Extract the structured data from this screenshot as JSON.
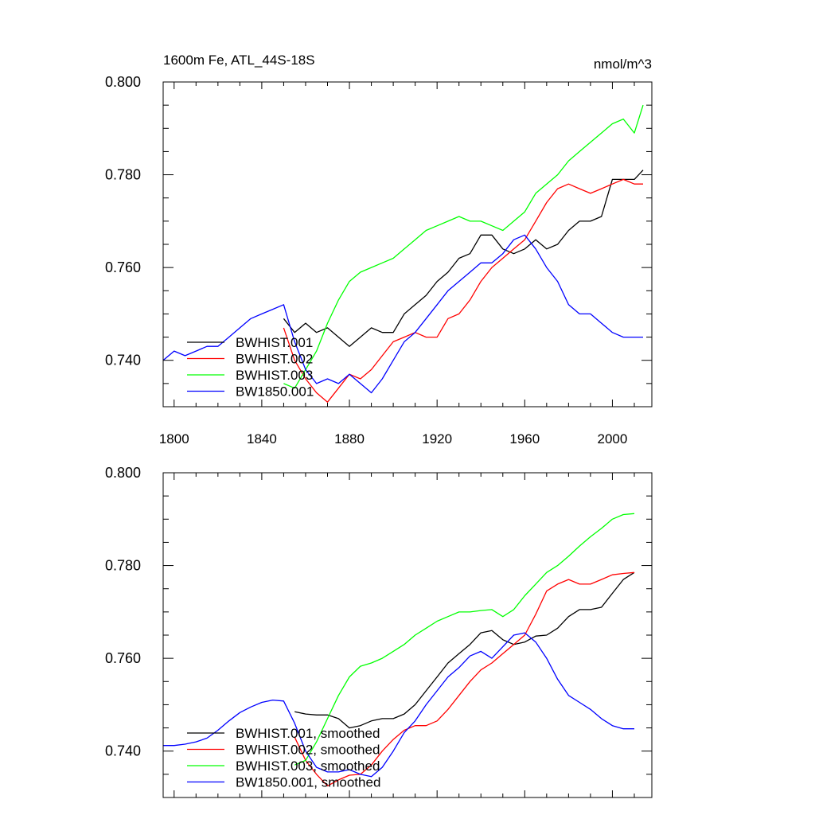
{
  "chart_data": [
    {
      "type": "line",
      "title": "1600m Fe, ATL_44S-18S",
      "units": "nmol/m^3",
      "xlim": [
        1795,
        2018
      ],
      "ylim": [
        0.73,
        0.8
      ],
      "x_ticks": [
        1800,
        1840,
        1880,
        1920,
        1960,
        2000
      ],
      "x_tick_labels": [
        "1800",
        "1840",
        "1880",
        "1920",
        "1960",
        "2000"
      ],
      "y_ticks": [
        0.74,
        0.76,
        0.78,
        0.8
      ],
      "y_tick_labels": [
        "0.740",
        "0.760",
        "0.780",
        "0.800"
      ],
      "legend_position": "bottom-left",
      "series": [
        {
          "name": "BWHIST.001",
          "color": "#000000",
          "x": [
            1850,
            1855,
            1860,
            1865,
            1870,
            1875,
            1880,
            1885,
            1890,
            1895,
            1900,
            1905,
            1910,
            1915,
            1920,
            1925,
            1930,
            1935,
            1940,
            1945,
            1950,
            1955,
            1960,
            1965,
            1970,
            1975,
            1980,
            1985,
            1990,
            1995,
            2000,
            2005,
            2010,
            2014
          ],
          "y": [
            0.749,
            0.746,
            0.748,
            0.746,
            0.747,
            0.745,
            0.743,
            0.745,
            0.747,
            0.746,
            0.746,
            0.75,
            0.752,
            0.754,
            0.757,
            0.759,
            0.762,
            0.763,
            0.767,
            0.767,
            0.764,
            0.763,
            0.764,
            0.766,
            0.764,
            0.765,
            0.768,
            0.77,
            0.77,
            0.771,
            0.779,
            0.779,
            0.779,
            0.781
          ]
        },
        {
          "name": "BWHIST.002",
          "color": "#ff0000",
          "x": [
            1850,
            1855,
            1860,
            1865,
            1870,
            1875,
            1880,
            1885,
            1890,
            1895,
            1900,
            1905,
            1910,
            1915,
            1920,
            1925,
            1930,
            1935,
            1940,
            1945,
            1950,
            1955,
            1960,
            1965,
            1970,
            1975,
            1980,
            1985,
            1990,
            1995,
            2000,
            2005,
            2010,
            2014
          ],
          "y": [
            0.747,
            0.74,
            0.736,
            0.733,
            0.731,
            0.734,
            0.737,
            0.736,
            0.738,
            0.741,
            0.744,
            0.745,
            0.746,
            0.745,
            0.745,
            0.749,
            0.75,
            0.753,
            0.757,
            0.76,
            0.762,
            0.764,
            0.766,
            0.77,
            0.774,
            0.777,
            0.778,
            0.777,
            0.776,
            0.777,
            0.778,
            0.779,
            0.778,
            0.778
          ]
        },
        {
          "name": "BWHIST.003",
          "color": "#00ff00",
          "x": [
            1850,
            1855,
            1860,
            1865,
            1870,
            1875,
            1880,
            1885,
            1890,
            1895,
            1900,
            1905,
            1910,
            1915,
            1920,
            1925,
            1930,
            1935,
            1940,
            1945,
            1950,
            1955,
            1960,
            1965,
            1970,
            1975,
            1980,
            1985,
            1990,
            1995,
            2000,
            2005,
            2010,
            2014
          ],
          "y": [
            0.735,
            0.734,
            0.738,
            0.742,
            0.748,
            0.753,
            0.757,
            0.759,
            0.76,
            0.761,
            0.762,
            0.764,
            0.766,
            0.768,
            0.769,
            0.77,
            0.771,
            0.77,
            0.77,
            0.769,
            0.768,
            0.77,
            0.772,
            0.776,
            0.778,
            0.78,
            0.783,
            0.785,
            0.787,
            0.789,
            0.791,
            0.792,
            0.789,
            0.795
          ]
        },
        {
          "name": "BW1850.001",
          "color": "#0000ff",
          "x": [
            1795,
            1800,
            1805,
            1810,
            1815,
            1820,
            1825,
            1830,
            1835,
            1840,
            1845,
            1850,
            1855,
            1860,
            1865,
            1870,
            1875,
            1880,
            1885,
            1890,
            1895,
            1900,
            1905,
            1910,
            1915,
            1920,
            1925,
            1930,
            1935,
            1940,
            1945,
            1950,
            1955,
            1960,
            1965,
            1970,
            1975,
            1980,
            1985,
            1990,
            1995,
            2000,
            2005,
            2010,
            2014
          ],
          "y": [
            0.74,
            0.742,
            0.741,
            0.742,
            0.743,
            0.743,
            0.745,
            0.747,
            0.749,
            0.75,
            0.751,
            0.752,
            0.744,
            0.738,
            0.735,
            0.736,
            0.735,
            0.737,
            0.735,
            0.733,
            0.736,
            0.74,
            0.744,
            0.746,
            0.749,
            0.752,
            0.755,
            0.757,
            0.759,
            0.761,
            0.761,
            0.763,
            0.766,
            0.767,
            0.764,
            0.76,
            0.757,
            0.752,
            0.75,
            0.75,
            0.748,
            0.746,
            0.745,
            0.745,
            0.745
          ]
        }
      ]
    },
    {
      "type": "line",
      "xlim": [
        1795,
        2018
      ],
      "ylim": [
        0.73,
        0.8
      ],
      "x_ticks": [
        1800,
        1840,
        1880,
        1920,
        1960,
        2000
      ],
      "y_ticks": [
        0.74,
        0.76,
        0.78,
        0.8
      ],
      "y_tick_labels": [
        "0.740",
        "0.760",
        "0.780",
        "0.800"
      ],
      "legend_position": "bottom-left",
      "series": [
        {
          "name": "BWHIST.001, smoothed",
          "color": "#000000",
          "x": [
            1855,
            1860,
            1865,
            1870,
            1875,
            1880,
            1885,
            1890,
            1895,
            1900,
            1905,
            1910,
            1915,
            1920,
            1925,
            1930,
            1935,
            1940,
            1945,
            1950,
            1955,
            1960,
            1965,
            1970,
            1975,
            1980,
            1985,
            1990,
            1995,
            2000,
            2005,
            2010
          ],
          "y": [
            0.7485,
            0.748,
            0.7478,
            0.7478,
            0.747,
            0.745,
            0.7455,
            0.7465,
            0.747,
            0.747,
            0.748,
            0.75,
            0.753,
            0.756,
            0.759,
            0.761,
            0.763,
            0.7655,
            0.766,
            0.764,
            0.763,
            0.7635,
            0.7648,
            0.765,
            0.7665,
            0.769,
            0.7705,
            0.7705,
            0.771,
            0.774,
            0.777,
            0.7785
          ]
        },
        {
          "name": "BWHIST.002, smoothed",
          "color": "#ff0000",
          "x": [
            1855,
            1860,
            1865,
            1870,
            1875,
            1880,
            1885,
            1890,
            1895,
            1900,
            1905,
            1910,
            1915,
            1920,
            1925,
            1930,
            1935,
            1940,
            1945,
            1950,
            1955,
            1960,
            1965,
            1970,
            1975,
            1980,
            1985,
            1990,
            1995,
            2000,
            2005,
            2010
          ],
          "y": [
            0.743,
            0.738,
            0.735,
            0.7325,
            0.7338,
            0.7348,
            0.735,
            0.737,
            0.74,
            0.7425,
            0.7445,
            0.7455,
            0.7455,
            0.7465,
            0.749,
            0.752,
            0.755,
            0.7575,
            0.759,
            0.761,
            0.763,
            0.765,
            0.7695,
            0.7745,
            0.776,
            0.777,
            0.776,
            0.776,
            0.777,
            0.778,
            0.7783,
            0.7785
          ]
        },
        {
          "name": "BWHIST.003, smoothed",
          "color": "#00ff00",
          "x": [
            1855,
            1860,
            1865,
            1870,
            1875,
            1880,
            1885,
            1890,
            1895,
            1900,
            1905,
            1910,
            1915,
            1920,
            1925,
            1930,
            1935,
            1940,
            1945,
            1950,
            1955,
            1960,
            1965,
            1970,
            1975,
            1980,
            1985,
            1990,
            1995,
            2000,
            2005,
            2010
          ],
          "y": [
            0.737,
            0.738,
            0.742,
            0.747,
            0.752,
            0.756,
            0.7583,
            0.759,
            0.76,
            0.7615,
            0.763,
            0.765,
            0.7665,
            0.768,
            0.769,
            0.77,
            0.77,
            0.7703,
            0.7705,
            0.769,
            0.7705,
            0.7735,
            0.776,
            0.7785,
            0.78,
            0.782,
            0.7842,
            0.7862,
            0.788,
            0.79,
            0.791,
            0.7912
          ]
        },
        {
          "name": "BW1850.001, smoothed",
          "color": "#0000ff",
          "x": [
            1795,
            1800,
            1805,
            1810,
            1815,
            1820,
            1825,
            1830,
            1835,
            1840,
            1845,
            1850,
            1855,
            1860,
            1865,
            1870,
            1875,
            1880,
            1885,
            1890,
            1895,
            1900,
            1905,
            1910,
            1915,
            1920,
            1925,
            1930,
            1935,
            1940,
            1945,
            1950,
            1955,
            1960,
            1965,
            1970,
            1975,
            1980,
            1985,
            1990,
            1995,
            2000,
            2005,
            2010
          ],
          "y": [
            0.7412,
            0.7412,
            0.7415,
            0.742,
            0.7428,
            0.7445,
            0.7465,
            0.7483,
            0.7495,
            0.7505,
            0.751,
            0.7508,
            0.746,
            0.74,
            0.7365,
            0.7355,
            0.7355,
            0.736,
            0.735,
            0.7345,
            0.7365,
            0.74,
            0.744,
            0.7465,
            0.75,
            0.753,
            0.756,
            0.758,
            0.7605,
            0.7615,
            0.76,
            0.7625,
            0.765,
            0.7655,
            0.7635,
            0.76,
            0.7555,
            0.752,
            0.7505,
            0.749,
            0.747,
            0.7455,
            0.7448,
            0.7448
          ]
        }
      ]
    }
  ]
}
